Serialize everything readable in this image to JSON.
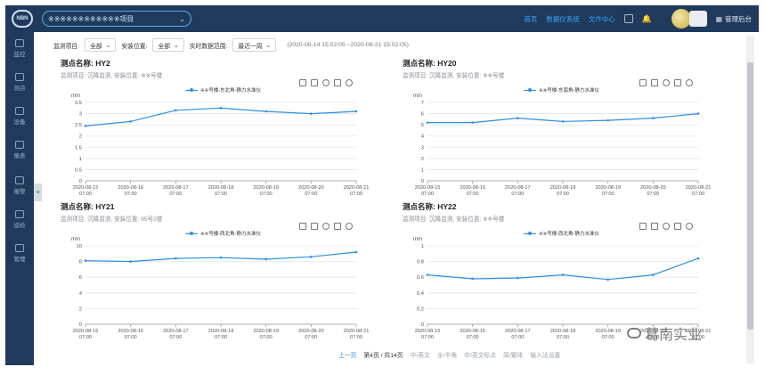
{
  "header": {
    "project_select": "※※※※※※※※※※※※项目",
    "nav": [
      "首页",
      "数据仪系统",
      "文件中心"
    ],
    "admin_label": "管理后台"
  },
  "sidebar": {
    "items": [
      "监控",
      "测点",
      "设备",
      "报表",
      "报警",
      "巡检",
      "管理"
    ]
  },
  "filters": {
    "project_label": "监测项目:",
    "project_value": "全部",
    "location_label": "安装位置:",
    "location_value": "全部",
    "range_label": "实时数据范围:",
    "range_value": "最近一周",
    "range_text": "(2020-08-14 15:02:05 ~2020-08-21 15:02:05)"
  },
  "panels": [
    {
      "title": "测点名称: HY2",
      "subtitle": "监测项目: 沉降监测, 安装位置: ※※号楼",
      "legend": "※※号楼-东北角-静力水准仪"
    },
    {
      "title": "测点名称: HY20",
      "subtitle": "监测项目: 沉降监测, 安装位置: ※※号楼",
      "legend": "※※号楼-东南角-静力水准仪"
    },
    {
      "title": "测点名称: HY21",
      "subtitle": "监测项目: 沉降监测, 安装位置: 95号2楼",
      "legend": "※※号楼-西北角-静力水准仪"
    },
    {
      "title": "测点名称: HY22",
      "subtitle": "监测项目: 沉降监测, 安装位置: ※※号楼",
      "legend": "※※号楼-西北角-静力水准仪"
    }
  ],
  "chart_data": [
    {
      "type": "line",
      "ylabel": "mm",
      "ylim": [
        0,
        3.5
      ],
      "yticks": [
        "0",
        "0.5",
        "1",
        "1.5",
        "2",
        "2.5",
        "3",
        "3.5"
      ],
      "categories": [
        "2020-08-15 07:00",
        "2020-08-16 07:00",
        "2020-08-17 07:00",
        "2020-08-18 07:00",
        "2020-08-19 07:00",
        "2020-08-20 07:00",
        "2020-08-21 07:00"
      ],
      "values": [
        2.45,
        2.65,
        3.15,
        3.25,
        3.1,
        3.0,
        3.1
      ]
    },
    {
      "type": "line",
      "ylabel": "mm",
      "ylim": [
        0,
        7
      ],
      "yticks": [
        "0",
        "1",
        "2",
        "3",
        "4",
        "5",
        "6",
        "7"
      ],
      "categories": [
        "2020-08-15 07:00",
        "2020-08-16 07:00",
        "2020-08-17 07:00",
        "2020-08-18 07:00",
        "2020-08-19 07:00",
        "2020-08-20 07:00",
        "2020-08-21 07:00"
      ],
      "values": [
        5.2,
        5.2,
        5.6,
        5.3,
        5.4,
        5.6,
        6.0
      ]
    },
    {
      "type": "line",
      "ylabel": "mm",
      "ylim": [
        0,
        10
      ],
      "yticks": [
        "0",
        "2",
        "4",
        "6",
        "8",
        "10"
      ],
      "categories": [
        "2020-08-15 07:00",
        "2020-08-16 07:00",
        "2020-08-17 07:00",
        "2020-08-18 07:00",
        "2020-08-19 07:00",
        "2020-08-20 07:00",
        "2020-08-21 07:00"
      ],
      "values": [
        8.1,
        8.0,
        8.4,
        8.5,
        8.3,
        8.6,
        9.2
      ]
    },
    {
      "type": "line",
      "ylabel": "mm",
      "ylim": [
        0,
        1
      ],
      "yticks": [
        "0",
        "0.2",
        "0.4",
        "0.6",
        "0.8",
        "1"
      ],
      "categories": [
        "2020-08-15 07:00",
        "2020-08-16 07:00",
        "2020-08-17 07:00",
        "2020-08-18 07:00",
        "2020-08-19 07:00",
        "2020-08-20 07:00",
        "2020-08-21 07:00"
      ],
      "values": [
        0.63,
        0.58,
        0.59,
        0.63,
        0.57,
        0.63,
        0.84
      ]
    }
  ],
  "pager": {
    "prev": "上一页",
    "info": "第4页 / 共14页",
    "items": [
      "中/英文",
      "全/半角",
      "中/英文标点",
      "简/繁体",
      "输入法设置"
    ]
  },
  "watermark": "葛南实业"
}
